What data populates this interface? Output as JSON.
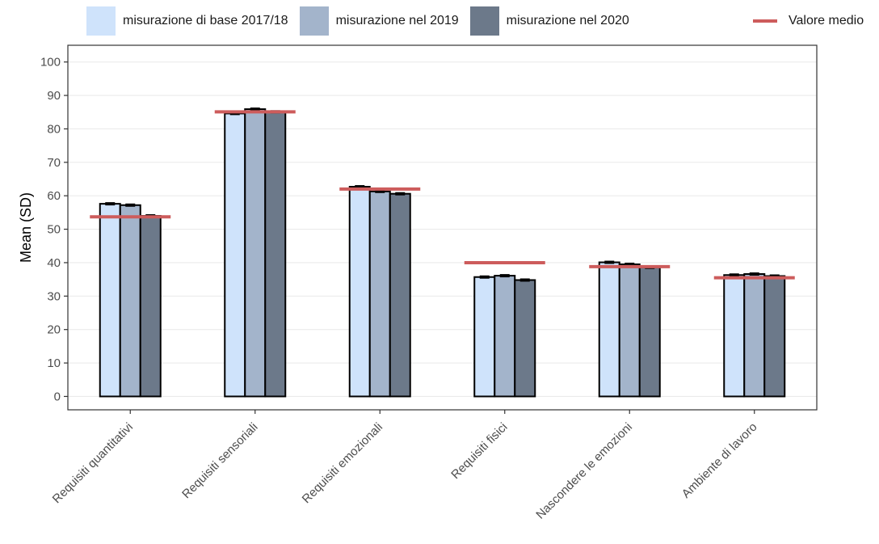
{
  "colors": {
    "base": "#cfe3fb",
    "y2019": "#a3b4cb",
    "y2020": "#6c798a",
    "mean": "#cd5c5c"
  },
  "legend": {
    "base_label": "misurazione di base 2017/18",
    "y2019_label": "misurazione nel 2019",
    "y2020_label": "misurazione nel 2020",
    "mean_label": "Valore medio"
  },
  "chart_data": {
    "type": "bar",
    "ylabel": "Mean (SD)",
    "xlabel": "",
    "ylim": [
      -4,
      105
    ],
    "yticks": [
      0,
      10,
      20,
      30,
      40,
      50,
      60,
      70,
      80,
      90,
      100
    ],
    "categories": [
      "Requisiti quantitativi",
      "Requisiti sensoriali",
      "Requisiti emozionali",
      "Requisiti fisici",
      "Nascondere le emozioni",
      "Ambiente di lavoro"
    ],
    "series": [
      {
        "name": "misurazione di base 2017/18",
        "values": [
          57.6,
          84.6,
          62.7,
          35.7,
          40.1,
          36.3
        ],
        "sd": [
          0.3,
          0.3,
          0.3,
          0.3,
          0.3,
          0.3
        ]
      },
      {
        "name": "misurazione nel 2019",
        "values": [
          57.2,
          85.9,
          61.3,
          36.1,
          39.5,
          36.6
        ],
        "sd": [
          0.3,
          0.3,
          0.3,
          0.3,
          0.3,
          0.3
        ]
      },
      {
        "name": "misurazione nel 2020",
        "values": [
          54.0,
          85.1,
          60.6,
          34.8,
          38.6,
          36.0
        ],
        "sd": [
          0.3,
          0.3,
          0.3,
          0.3,
          0.3,
          0.3
        ]
      }
    ],
    "mean_values": [
      53.7,
      85.1,
      62.0,
      40.0,
      38.8,
      35.5
    ],
    "mean_label": "Valore medio",
    "grid": true,
    "legend_position": "top"
  }
}
